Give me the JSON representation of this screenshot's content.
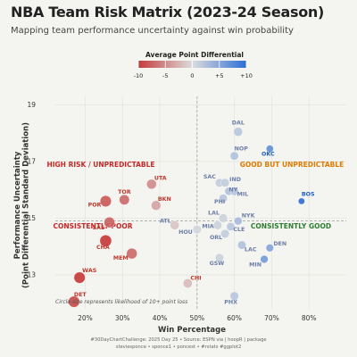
{
  "title": "NBA Team Risk Matrix (2023-24 Season)",
  "subtitle": "Mapping team performance uncertainty against win probability",
  "caption_line1": "#30DayChartChallenge: 2025 Day 25 • Source: ESPN via | hoopR | package",
  "caption_line2": "steviesponce • sponce1 • poncest • #rstats #ggplot2",
  "chart_data": {
    "type": "scatter",
    "xlabel": "Win Percentage",
    "ylabel": "Performance Uncertainty\n(Point Differential Standard Deviation)",
    "xlim": [
      0.12,
      0.9
    ],
    "ylim": [
      11.8,
      19.3
    ],
    "x_ticks": [
      0.2,
      0.3,
      0.4,
      0.5,
      0.6,
      0.7,
      0.8
    ],
    "x_tick_labels": [
      "20%",
      "30%",
      "40%",
      "50%",
      "60%",
      "70%",
      "80%"
    ],
    "y_ticks": [
      13,
      15,
      17,
      19
    ],
    "y_tick_labels": [
      "13",
      "15",
      "17",
      "19"
    ],
    "x_reference": 0.5,
    "y_reference": 14.9,
    "grid": true,
    "legend": {
      "title": "Average Point Differential",
      "placement": "top",
      "min": -10,
      "max": 10,
      "ticks": [
        -10,
        -5,
        0,
        5,
        10
      ],
      "tick_labels": [
        "-10",
        "-5",
        "0",
        "+5",
        "+10"
      ],
      "colors": [
        "#c43b3b",
        "#dcdcdc",
        "#2f6fd6"
      ]
    },
    "size_note": "Circle size represents likelihood of 10+ point loss",
    "quadrant_labels": [
      {
        "text": "HIGH RISK / UNPREDICTABLE",
        "color": "#c62828"
      },
      {
        "text": "GOOD BUT UNPREDICTABLE",
        "color": "#e07b00"
      },
      {
        "text": "CONSISTENTLY POOR",
        "color": "#c62828"
      },
      {
        "text": "CONSISTENTLY GOOD",
        "color": "#2e7d32"
      }
    ],
    "points": [
      {
        "team": "DAL",
        "x": 0.61,
        "y": 18.05,
        "diff": 2.0,
        "loss10": 0.33
      },
      {
        "team": "OKC",
        "x": 0.695,
        "y": 17.45,
        "diff": 7.0,
        "loss10": 0.18
      },
      {
        "team": "NOP",
        "x": 0.6,
        "y": 17.2,
        "diff": 2.5,
        "loss10": 0.28
      },
      {
        "team": "BOS",
        "x": 0.78,
        "y": 15.6,
        "diff": 11.0,
        "loss10": 0.1
      },
      {
        "team": "SAC",
        "x": 0.56,
        "y": 16.25,
        "diff": 1.5,
        "loss10": 0.3
      },
      {
        "team": "IND",
        "x": 0.575,
        "y": 16.25,
        "diff": 1.5,
        "loss10": 0.3
      },
      {
        "team": "NY",
        "x": 0.585,
        "y": 15.95,
        "diff": 2.5,
        "loss10": 0.25
      },
      {
        "team": "PHI",
        "x": 0.57,
        "y": 15.7,
        "diff": 2.0,
        "loss10": 0.28
      },
      {
        "team": "MIL",
        "x": 0.6,
        "y": 15.95,
        "diff": 2.0,
        "loss10": 0.3
      },
      {
        "team": "UTA",
        "x": 0.378,
        "y": 16.2,
        "diff": -5.0,
        "loss10": 0.42
      },
      {
        "team": "TOR",
        "x": 0.305,
        "y": 15.65,
        "diff": -7.0,
        "loss10": 0.45
      },
      {
        "team": "BKN",
        "x": 0.39,
        "y": 15.45,
        "diff": -3.5,
        "loss10": 0.4
      },
      {
        "team": "POR",
        "x": 0.255,
        "y": 15.6,
        "diff": -8.0,
        "loss10": 0.55
      },
      {
        "team": "LAL",
        "x": 0.57,
        "y": 15.0,
        "diff": 1.0,
        "loss10": 0.32
      },
      {
        "team": "NYK",
        "x": 0.61,
        "y": 14.9,
        "diff": 3.0,
        "loss10": 0.25
      },
      {
        "team": "ATL",
        "x": 0.44,
        "y": 14.75,
        "diff": -1.5,
        "loss10": 0.35
      },
      {
        "team": "MIA",
        "x": 0.555,
        "y": 14.75,
        "diff": 1.0,
        "loss10": 0.3
      },
      {
        "team": "CLE",
        "x": 0.59,
        "y": 14.7,
        "diff": 2.0,
        "loss10": 0.28
      },
      {
        "team": "SAS",
        "x": 0.265,
        "y": 14.85,
        "diff": -7.5,
        "loss10": 0.5
      },
      {
        "team": "HOU",
        "x": 0.5,
        "y": 14.6,
        "diff": 0.5,
        "loss10": 0.32
      },
      {
        "team": "ORL",
        "x": 0.575,
        "y": 14.45,
        "diff": 1.5,
        "loss10": 0.3
      },
      {
        "team": "CHA",
        "x": 0.255,
        "y": 14.2,
        "diff": -10.0,
        "loss10": 0.6
      },
      {
        "team": "LAC",
        "x": 0.62,
        "y": 14.05,
        "diff": 2.5,
        "loss10": 0.28
      },
      {
        "team": "DEN",
        "x": 0.695,
        "y": 13.95,
        "diff": 5.0,
        "loss10": 0.22
      },
      {
        "team": "MEM",
        "x": 0.325,
        "y": 13.75,
        "diff": -7.0,
        "loss10": 0.5
      },
      {
        "team": "GSW",
        "x": 0.56,
        "y": 13.6,
        "diff": 1.0,
        "loss10": 0.3
      },
      {
        "team": "MIN",
        "x": 0.68,
        "y": 13.55,
        "diff": 6.0,
        "loss10": 0.22
      },
      {
        "team": "WAS",
        "x": 0.185,
        "y": 12.9,
        "diff": -10.0,
        "loss10": 0.55
      },
      {
        "team": "CHI",
        "x": 0.475,
        "y": 12.7,
        "diff": -2.0,
        "loss10": 0.36
      },
      {
        "team": "DET",
        "x": 0.17,
        "y": 12.05,
        "diff": -9.0,
        "loss10": 0.55
      },
      {
        "team": "PHX",
        "x": 0.6,
        "y": 12.25,
        "diff": 2.0,
        "loss10": 0.3
      }
    ]
  }
}
